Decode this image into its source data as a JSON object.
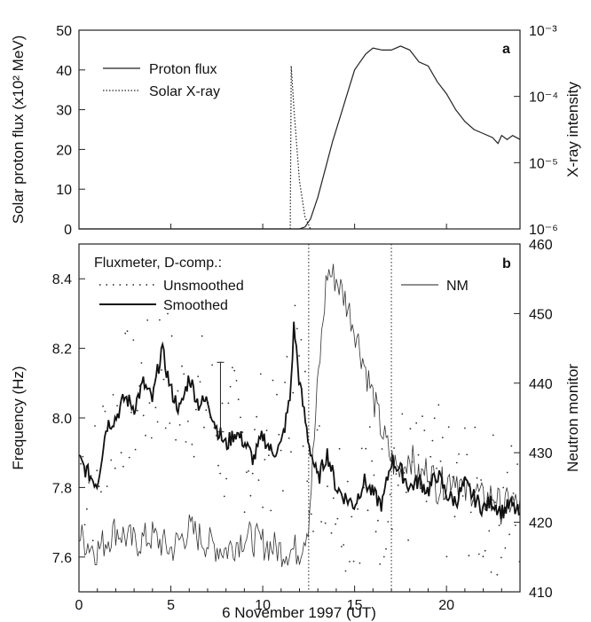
{
  "chart_data": [
    {
      "panel_label": "a",
      "type": "line",
      "xlim": [
        0,
        24
      ],
      "ylabel": "Solar proton flux (x10² MeV)",
      "ylim": [
        0,
        50
      ],
      "yticks": [
        "0",
        "10",
        "20",
        "30",
        "40",
        "50"
      ],
      "y2label": "X-ray intensity",
      "y2_scale": "log",
      "y2ticks": [
        "10⁻⁶",
        "10⁻⁵",
        "10⁻⁴",
        "10⁻³"
      ],
      "legend": [
        "Proton flux",
        "Solar X-ray"
      ],
      "series": [
        {
          "name": "Proton flux",
          "style": "solid",
          "x": [
            0,
            12.0,
            12.3,
            12.6,
            13.0,
            13.4,
            13.8,
            14.2,
            14.6,
            15.0,
            15.3,
            15.6,
            16.0,
            16.5,
            17.0,
            17.5,
            18.0,
            18.5,
            19.0,
            19.5,
            20.0,
            20.5,
            21.0,
            21.5,
            22.0,
            22.5,
            22.8,
            23.0,
            23.3,
            23.6,
            24.0
          ],
          "y": [
            0,
            0,
            0.5,
            2.5,
            8,
            15,
            22,
            28,
            34,
            40,
            42,
            44,
            45.5,
            45,
            45,
            46,
            45,
            42,
            41,
            37,
            34,
            30,
            27,
            25,
            24,
            23,
            21.5,
            23.5,
            22.5,
            23.5,
            22.5
          ]
        },
        {
          "name": "Solar X-ray",
          "style": "dotted",
          "y_axis": "right",
          "x": [
            11.5,
            11.55,
            11.7,
            12.0,
            12.3,
            12.6
          ],
          "y": [
            0,
            41,
            30,
            12,
            3,
            0
          ]
        }
      ]
    },
    {
      "panel_label": "b",
      "type": "line",
      "xlabel": "6 November 1997 (UT)",
      "xlim": [
        0,
        24
      ],
      "xticks": [
        "0",
        "5",
        "10",
        "15",
        "20"
      ],
      "ylabel": "Frequency (Hz)",
      "ylim": [
        7.5,
        8.5
      ],
      "yticks": [
        "7.6",
        "7.8",
        "8.0",
        "8.2",
        "8.4"
      ],
      "y2label": "Neutron monitor",
      "y2lim": [
        410,
        460
      ],
      "y2ticks": [
        "410",
        "420",
        "430",
        "440",
        "450",
        "460"
      ],
      "legend_title": "Fluxmeter, D-comp.:",
      "legend": [
        "Unsmoothed",
        "Smoothed",
        "NM"
      ],
      "vlines": [
        12.5,
        17.0
      ],
      "series": [
        {
          "name": "Smoothed",
          "style": "thick",
          "x": [
            0,
            0.5,
            1.0,
            1.5,
            2.0,
            2.5,
            3.0,
            3.5,
            4.0,
            4.5,
            5.0,
            5.5,
            6.0,
            6.5,
            7.0,
            7.5,
            8.0,
            8.5,
            9.0,
            9.5,
            10.0,
            10.5,
            11.0,
            11.5,
            11.7,
            12.0,
            12.5,
            13.0,
            13.5,
            14.0,
            14.5,
            15.0,
            15.5,
            16.0,
            16.5,
            17.0,
            17.5,
            18.0,
            18.5,
            19.0,
            19.5,
            20.0,
            20.5,
            21.0,
            21.5,
            22.0,
            22.5,
            23.0,
            23.5,
            24.0
          ],
          "y": [
            7.88,
            7.84,
            7.81,
            7.98,
            8.0,
            8.06,
            8.03,
            8.1,
            8.05,
            8.2,
            8.08,
            8.02,
            8.12,
            8.04,
            8.05,
            7.97,
            7.92,
            7.96,
            7.93,
            7.88,
            7.95,
            7.9,
            7.92,
            8.06,
            8.27,
            8.1,
            7.93,
            7.82,
            7.9,
            7.8,
            7.77,
            7.75,
            7.82,
            7.78,
            7.75,
            7.88,
            7.85,
            7.8,
            7.82,
            7.79,
            7.84,
            7.78,
            7.76,
            7.81,
            7.77,
            7.74,
            7.76,
            7.73,
            7.75,
            7.72
          ]
        },
        {
          "name": "NM",
          "style": "thin",
          "y_axis": "right",
          "x": [
            0,
            1,
            2,
            3,
            4,
            5,
            6,
            7,
            8,
            9,
            10,
            11,
            12,
            12.5,
            13.0,
            13.5,
            14.0,
            14.5,
            15.0,
            15.5,
            16.0,
            16.5,
            17.0,
            17.5,
            18.0,
            18.5,
            19.0,
            19.5,
            20.0,
            20.5,
            21.0,
            21.5,
            22.0,
            22.5,
            23.0,
            23.5,
            24.0
          ],
          "y": [
            418,
            416,
            419,
            417,
            418,
            416,
            419,
            417,
            416,
            418,
            417,
            416,
            416,
            420,
            440,
            456,
            455,
            452,
            448,
            443,
            438,
            433,
            429,
            427,
            430,
            426,
            428,
            425,
            426,
            427,
            424,
            425,
            423,
            424,
            422,
            423,
            422
          ]
        }
      ]
    }
  ]
}
